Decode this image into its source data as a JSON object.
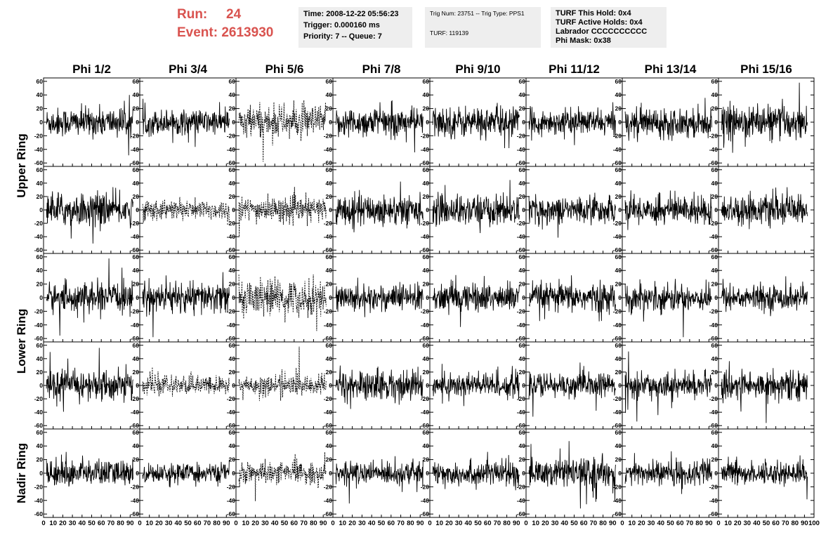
{
  "header": {
    "run_label": "Run:",
    "run_value": "24",
    "event_label": "Event:",
    "event_value": "2613930",
    "accent_color": "#d9534f"
  },
  "info_boxes": [
    {
      "lines": [
        "Time: 2008-12-22 05:56:23",
        "Trigger: 0.000160 ms",
        "Priority: 7 -- Queue: 7"
      ]
    },
    {
      "lines": [
        "Trig Num: 23751 -- Trig Type: PPS1",
        "",
        "TURF: 119139"
      ]
    },
    {
      "lines": [
        "TURF This Hold: 0x4",
        "TURF Active Holds: 0x4",
        "Labrador CCCCCCCCCC",
        "Phi Mask: 0x38"
      ]
    }
  ],
  "chart_data": {
    "type": "line",
    "grid": "8 columns x 5 rows of waveform panels",
    "column_labels": [
      "Phi 1/2",
      "Phi 3/4",
      "Phi 5/6",
      "Phi 7/8",
      "Phi 9/10",
      "Phi 11/12",
      "Phi 13/14",
      "Phi 15/16"
    ],
    "row_labels": [
      "Upper Ring",
      "Lower Ring",
      "Nadir Ring"
    ],
    "row_label_span": [
      [
        0,
        1
      ],
      [
        2,
        3
      ],
      [
        4,
        4
      ]
    ],
    "xlim": [
      0,
      100
    ],
    "ylim": [
      -65,
      65
    ],
    "y_ticks": [
      -60,
      -40,
      -20,
      0,
      20,
      40,
      60
    ],
    "x_tick_labels": [
      "0",
      "10",
      "20",
      "30",
      "40",
      "50",
      "60",
      "70",
      "80",
      "90",
      "100"
    ],
    "dashed_panels": [
      [
        0,
        2
      ],
      [
        1,
        1
      ],
      [
        1,
        2
      ],
      [
        2,
        2
      ],
      [
        3,
        1
      ],
      [
        3,
        2
      ],
      [
        4,
        2
      ]
    ],
    "panel_amplitude": [
      [
        14,
        12,
        16,
        14,
        15,
        12,
        14,
        16
      ],
      [
        16,
        10,
        12,
        15,
        15,
        13,
        14,
        14
      ],
      [
        14,
        15,
        17,
        13,
        14,
        14,
        13,
        12
      ],
      [
        15,
        9,
        10,
        15,
        13,
        12,
        12,
        14
      ],
      [
        13,
        9,
        10,
        11,
        12,
        14,
        12,
        11
      ]
    ]
  }
}
